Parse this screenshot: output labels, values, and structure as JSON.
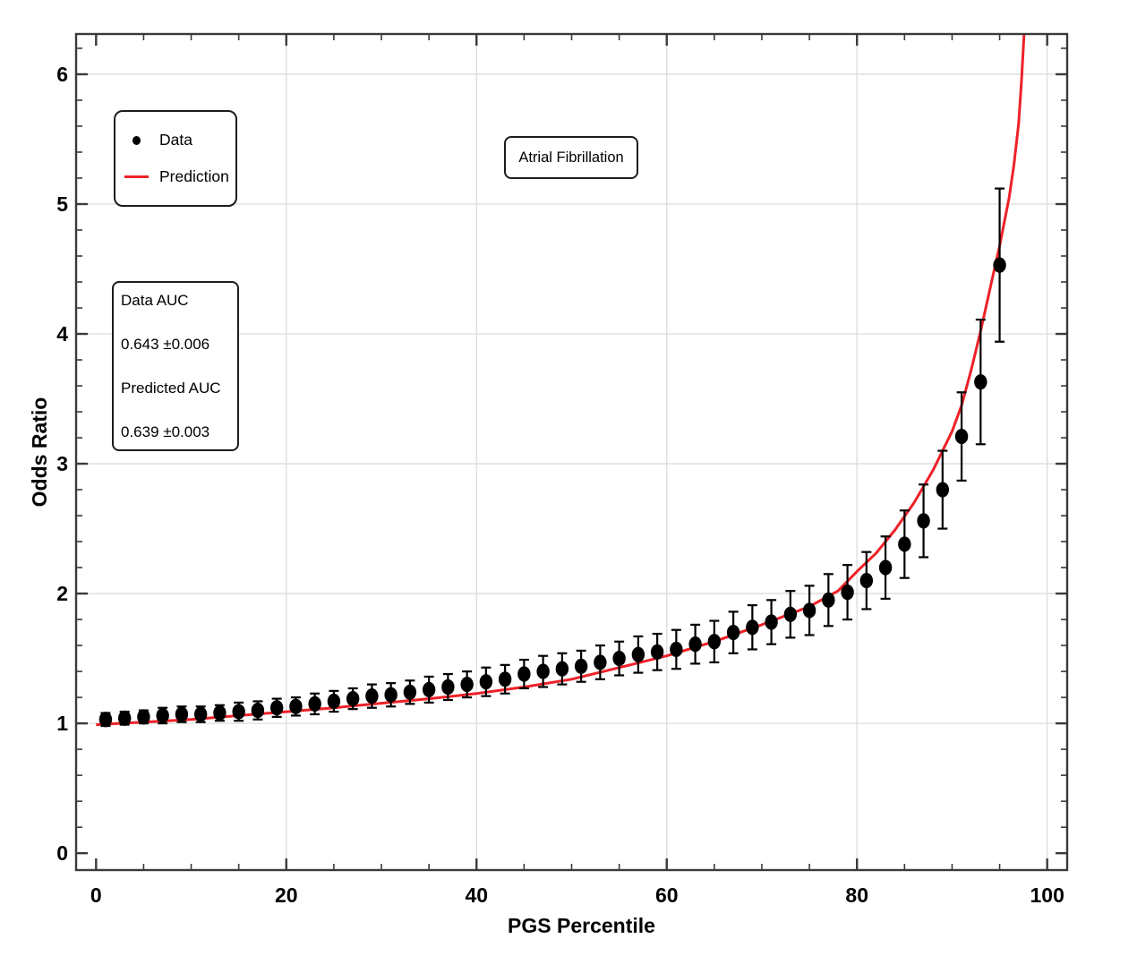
{
  "figure": {
    "annotation_label": "Atrial Fibrillation",
    "legend": {
      "items": [
        {
          "label": "Data",
          "marker": "filled-dot"
        },
        {
          "label": "Prediction",
          "marker": "red-line"
        }
      ]
    },
    "auc_box": {
      "line1": "Data AUC",
      "line2": "0.643 ±0.006",
      "line3": "Predicted AUC",
      "line4": "0.639 ±0.003"
    }
  },
  "colors": {
    "prediction": "#ee2127",
    "data": "#000000",
    "grid": "#dcdcdc",
    "frame": "#3a3a3a",
    "text": "#000000",
    "background": "#ffffff"
  },
  "chart_data": {
    "type": "scatter",
    "title": "Atrial Fibrillation",
    "xlabel": "PGS Percentile",
    "ylabel": "Odds Ratio",
    "xlim": [
      -2.1,
      102.1
    ],
    "ylim": [
      -0.13,
      6.31
    ],
    "x_ticks": [
      0,
      20,
      40,
      60,
      80,
      100
    ],
    "y_ticks": [
      0,
      1,
      2,
      3,
      4,
      5,
      6
    ],
    "x_minor_tick_step": 5,
    "y_minor_tick_step": 0.2,
    "grid_x": [
      20,
      40,
      60,
      80,
      100
    ],
    "grid_y": [
      1,
      2,
      3,
      4,
      5,
      6
    ],
    "grid": "major-only",
    "legend_position": "upper-left",
    "annotations": {
      "data_auc": "0.643 ±0.006",
      "predicted_auc": "0.639 ±0.003"
    },
    "series": [
      {
        "name": "Data",
        "type": "scatter-errorbar",
        "x": [
          1,
          3,
          5,
          7,
          9,
          11,
          13,
          15,
          17,
          19,
          21,
          23,
          25,
          27,
          29,
          31,
          33,
          35,
          37,
          39,
          41,
          43,
          45,
          47,
          49,
          51,
          53,
          55,
          57,
          59,
          61,
          63,
          65,
          67,
          69,
          71,
          73,
          75,
          77,
          79,
          81,
          83,
          85,
          87,
          89,
          91,
          93,
          95
        ],
        "y": [
          1.03,
          1.04,
          1.05,
          1.06,
          1.07,
          1.07,
          1.08,
          1.09,
          1.1,
          1.12,
          1.13,
          1.15,
          1.17,
          1.19,
          1.21,
          1.22,
          1.24,
          1.26,
          1.28,
          1.3,
          1.32,
          1.34,
          1.38,
          1.4,
          1.42,
          1.44,
          1.47,
          1.5,
          1.53,
          1.55,
          1.57,
          1.61,
          1.63,
          1.7,
          1.74,
          1.78,
          1.84,
          1.87,
          1.95,
          2.01,
          2.1,
          2.2,
          2.38,
          2.56,
          2.8,
          3.21,
          3.63,
          4.53
        ],
        "yerr": [
          0.05,
          0.05,
          0.05,
          0.06,
          0.06,
          0.06,
          0.06,
          0.07,
          0.07,
          0.07,
          0.07,
          0.08,
          0.08,
          0.08,
          0.09,
          0.09,
          0.09,
          0.1,
          0.1,
          0.1,
          0.11,
          0.11,
          0.11,
          0.12,
          0.12,
          0.12,
          0.13,
          0.13,
          0.14,
          0.14,
          0.15,
          0.15,
          0.16,
          0.16,
          0.17,
          0.17,
          0.18,
          0.19,
          0.2,
          0.21,
          0.22,
          0.24,
          0.26,
          0.28,
          0.3,
          0.34,
          0.48,
          0.59
        ]
      },
      {
        "name": "Prediction",
        "type": "line",
        "x": [
          0,
          5,
          10,
          15,
          20,
          25,
          30,
          35,
          40,
          45,
          50,
          55,
          60,
          65,
          70,
          75,
          78,
          80,
          82,
          84,
          86,
          88,
          90,
          91,
          92,
          93,
          94,
          95,
          96,
          96.5,
          97,
          97.3,
          97.6
        ],
        "y": [
          0.99,
          1.01,
          1.03,
          1.06,
          1.09,
          1.12,
          1.155,
          1.19,
          1.23,
          1.28,
          1.34,
          1.43,
          1.52,
          1.63,
          1.76,
          1.9,
          2.02,
          2.17,
          2.31,
          2.49,
          2.7,
          2.95,
          3.25,
          3.45,
          3.72,
          4.02,
          4.35,
          4.68,
          5.05,
          5.3,
          5.62,
          5.95,
          6.35
        ]
      }
    ]
  }
}
